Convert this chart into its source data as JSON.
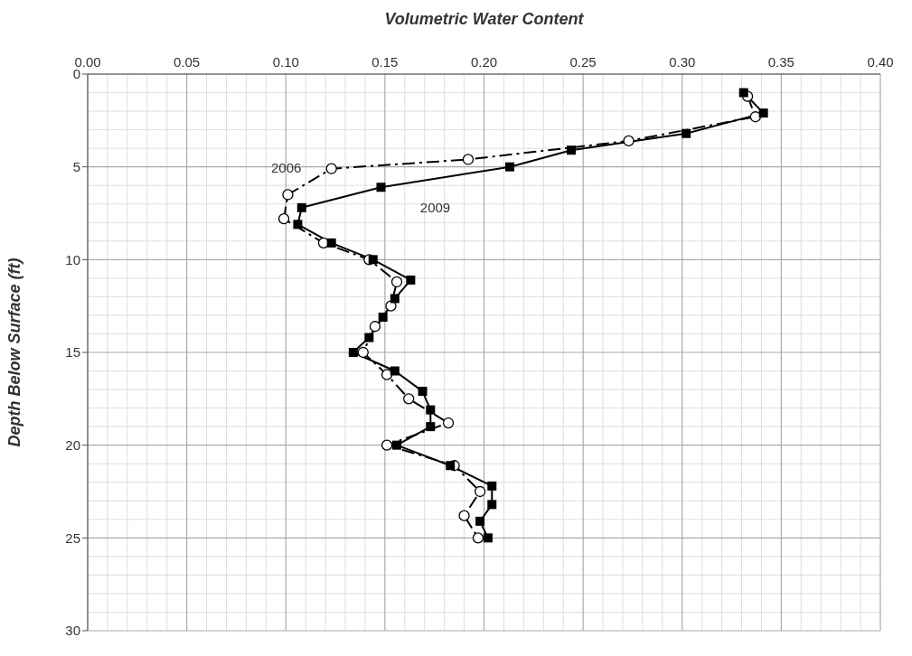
{
  "chart_data": {
    "type": "line",
    "xlabel": "Volumetric Water Content",
    "ylabel": "Depth Below Surface (ft)",
    "xlim": [
      0,
      0.4
    ],
    "xticks": [
      {
        "value": 0,
        "label": "0.00"
      },
      {
        "value": 0.05,
        "label": "0.05"
      },
      {
        "value": 0.1,
        "label": "0.10"
      },
      {
        "value": 0.15,
        "label": "0.15"
      },
      {
        "value": 0.2,
        "label": "0.20"
      },
      {
        "value": 0.25,
        "label": "0.25"
      },
      {
        "value": 0.3,
        "label": "0.30"
      },
      {
        "value": 0.35,
        "label": "0.35"
      },
      {
        "value": 0.4,
        "label": "0.40"
      }
    ],
    "ylim": [
      30,
      0
    ],
    "yticks": [
      0,
      5,
      10,
      15,
      20,
      25,
      30
    ],
    "grid": true,
    "series": [
      {
        "name": "2006",
        "color": "#000000",
        "marker": "circle",
        "line_style": "dashed",
        "x": [
          0.333,
          0.337,
          0.273,
          0.192,
          0.123,
          0.101,
          0.099,
          0.119,
          0.142,
          0.156,
          0.153,
          0.145,
          0.139,
          0.151,
          0.162,
          0.182,
          0.151,
          0.185,
          0.198,
          0.19,
          0.197
        ],
        "values": [
          1.2,
          2.3,
          3.6,
          4.6,
          5.1,
          6.5,
          7.8,
          9.1,
          10.0,
          11.2,
          12.5,
          13.6,
          15.0,
          16.2,
          17.5,
          18.8,
          20.0,
          21.1,
          22.5,
          23.8,
          25.0
        ]
      },
      {
        "name": "2009",
        "color": "#000000",
        "marker": "square",
        "line_style": "solid",
        "x": [
          0.331,
          0.341,
          0.302,
          0.244,
          0.213,
          0.148,
          0.108,
          0.106,
          0.123,
          0.144,
          0.163,
          0.155,
          0.149,
          0.142,
          0.134,
          0.155,
          0.169,
          0.173,
          0.173,
          0.156,
          0.183,
          0.204,
          0.204,
          0.198,
          0.202
        ],
        "values": [
          1.0,
          2.1,
          3.2,
          4.1,
          5.0,
          6.1,
          7.2,
          8.1,
          9.1,
          10.0,
          11.1,
          12.1,
          13.1,
          14.2,
          15.0,
          16.0,
          17.1,
          18.1,
          19.0,
          20.0,
          21.1,
          22.2,
          23.2,
          24.1,
          25.0
        ]
      }
    ]
  }
}
